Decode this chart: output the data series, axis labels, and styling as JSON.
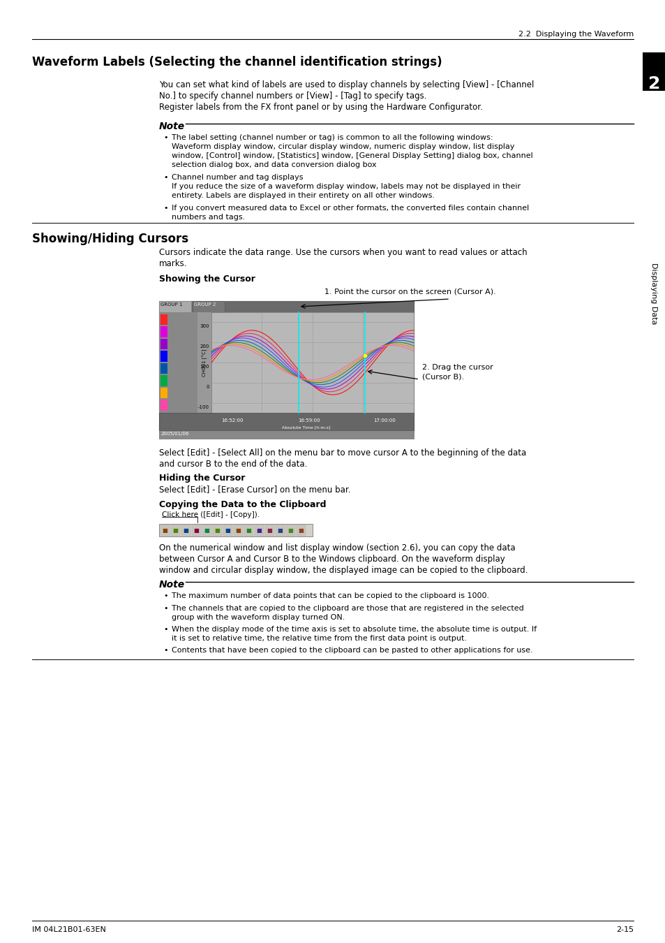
{
  "page_header": "2.2  Displaying the Waveform",
  "chapter_number": "2",
  "chapter_title": "Displaying Data",
  "footer_left": "IM 04L21B01-63EN",
  "footer_right": "2-15",
  "section1_title": "Waveform Labels (Selecting the channel identification strings)",
  "section1_body_lines": [
    "You can set what kind of labels are used to display channels by selecting [View] - [Channel",
    "No.] to specify channel numbers or [View] - [Tag] to specify tags.",
    "Register labels from the FX front panel or by using the Hardware Configurator."
  ],
  "note1_bullet1_line1": "The label setting (channel number or tag) is common to all the following windows:",
  "note1_bullet1_line2": "Waveform display window, circular display window, numeric display window, list display",
  "note1_bullet1_line3": "window, [Control] window, [Statistics] window, [General Display Setting] dialog box, channel",
  "note1_bullet1_line4": "selection dialog box, and data conversion dialog box",
  "note1_bullet2_line1": "Channel number and tag displays",
  "note1_bullet2_line2": "If you reduce the size of a waveform display window, labels may not be displayed in their",
  "note1_bullet2_line3": "entirety. Labels are displayed in their entirety on all other windows.",
  "note1_bullet3_line1": "If you convert measured data to Excel or other formats, the converted files contain channel",
  "note1_bullet3_line2": "numbers and tags.",
  "section2_title": "Showing/Hiding Cursors",
  "section2_body_line1": "Cursors indicate the data range. Use the cursors when you want to read values or attach",
  "section2_body_line2": "marks.",
  "showing_cursor_title": "Showing the Cursor",
  "annotation1": "1. Point the cursor on the screen (Cursor A).",
  "annotation2_line1": "2. Drag the cursor",
  "annotation2_line2": "(Cursor B).",
  "post_image_line1": "Select [Edit] - [Select All] on the menu bar to move cursor A to the beginning of the data",
  "post_image_line2": "and cursor B to the end of the data.",
  "hiding_cursor_title": "Hiding the Cursor",
  "hiding_cursor_body": "Select [Edit] - [Erase Cursor] on the menu bar.",
  "copy_title": "Copying the Data to the Clipboard",
  "copy_annotation": "Click here ([Edit] - [Copy]).",
  "copy_body_line1": "On the numerical window and list display window (section 2.6), you can copy the data",
  "copy_body_line2": "between Cursor A and Cursor B to the Windows clipboard. On the waveform display",
  "copy_body_line3": "window and circular display window, the displayed image can be copied to the clipboard.",
  "note2_bullet1": "The maximum number of data points that can be copied to the clipboard is 1000.",
  "note2_bullet2_line1": "The channels that are copied to the clipboard are those that are registered in the selected",
  "note2_bullet2_line2": "group with the waveform display turned ON.",
  "note2_bullet3_line1": "When the display mode of the time axis is set to absolute time, the absolute time is output. If",
  "note2_bullet3_line2": "it is set to relative time, the relative time from the first data point is output.",
  "note2_bullet4": "Contents that have been copied to the clipboard can be pasted to other applications for use.",
  "bg_color": "#ffffff"
}
